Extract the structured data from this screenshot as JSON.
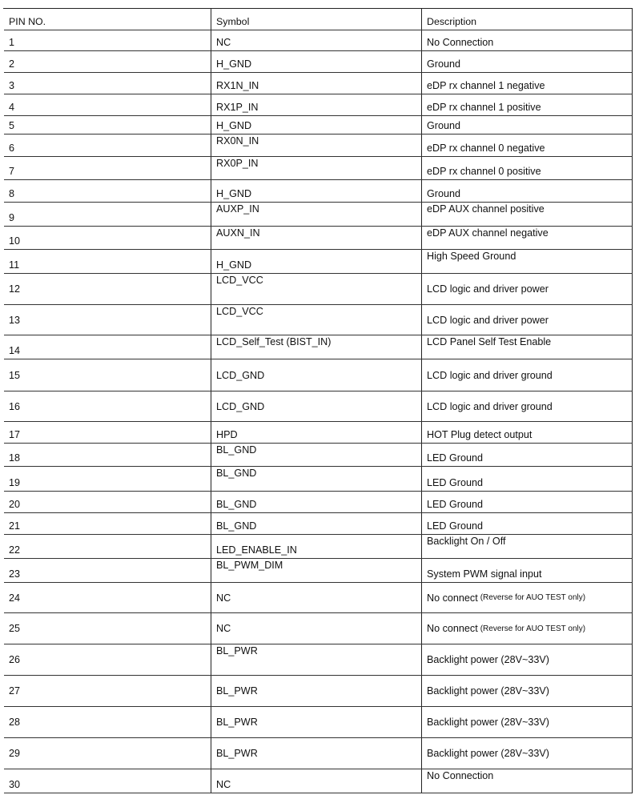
{
  "table": {
    "headers": {
      "pin": "PIN NO.",
      "symbol": "Symbol",
      "description": "Description"
    },
    "rows": [
      {
        "pin": "1",
        "symbol": "NC",
        "description": "No Connection"
      },
      {
        "pin": "2",
        "symbol": "H_GND",
        "description": "Ground"
      },
      {
        "pin": "3",
        "symbol": "RX1N_IN",
        "description": "eDP rx channel 1 negative"
      },
      {
        "pin": "4",
        "symbol": "RX1P_IN",
        "description": "eDP rx channel 1 positive"
      },
      {
        "pin": "5",
        "symbol": "H_GND",
        "description": "Ground"
      },
      {
        "pin": "6",
        "symbol": "RX0N_IN",
        "description": "eDP rx channel 0 negative"
      },
      {
        "pin": "7",
        "symbol": "RX0P_IN",
        "description": "eDP rx channel 0 positive"
      },
      {
        "pin": "8",
        "symbol": "H_GND",
        "description": "Ground"
      },
      {
        "pin": "9",
        "symbol": "AUXP_IN",
        "description": "eDP AUX channel  positive"
      },
      {
        "pin": "10",
        "symbol": "AUXN_IN",
        "description": "eDP AUX channel  negative"
      },
      {
        "pin": "11",
        "symbol": "H_GND",
        "description": "High Speed Ground"
      },
      {
        "pin": "12",
        "symbol": "LCD_VCC",
        "description": "LCD logic and driver power"
      },
      {
        "pin": "13",
        "symbol": "LCD_VCC",
        "description": "LCD logic and driver power"
      },
      {
        "pin": "14",
        "symbol": "LCD_Self_Test (BIST_IN)",
        "description": "LCD Panel Self Test Enable"
      },
      {
        "pin": "15",
        "symbol": "LCD_GND",
        "description": "LCD logic and driver ground"
      },
      {
        "pin": "16",
        "symbol": "LCD_GND",
        "description": "LCD logic and driver ground"
      },
      {
        "pin": "17",
        "symbol": "HPD",
        "description": "HOT Plug detect output"
      },
      {
        "pin": "18",
        "symbol": "BL_GND",
        "description": "LED Ground"
      },
      {
        "pin": "19",
        "symbol": "BL_GND",
        "description": "LED Ground"
      },
      {
        "pin": "20",
        "symbol": "BL_GND",
        "description": "LED Ground"
      },
      {
        "pin": "21",
        "symbol": "BL_GND",
        "description": "LED Ground"
      },
      {
        "pin": "22",
        "symbol": "LED_ENABLE_IN",
        "description": "Backlight On / Off"
      },
      {
        "pin": "23",
        "symbol": "BL_PWM_DIM",
        "description": "System PWM signal input"
      },
      {
        "pin": "24",
        "symbol": "NC",
        "description": "No connect",
        "note": "(Reverse for AUO TEST only)"
      },
      {
        "pin": "25",
        "symbol": "NC",
        "description": "No connect",
        "note": "(Reverse for AUO TEST only)"
      },
      {
        "pin": "26",
        "symbol": "BL_PWR",
        "description": "Backlight power (28V~33V)"
      },
      {
        "pin": "27",
        "symbol": "BL_PWR",
        "description": "Backlight power (28V~33V)"
      },
      {
        "pin": "28",
        "symbol": "BL_PWR",
        "description": "Backlight power (28V~33V)"
      },
      {
        "pin": "29",
        "symbol": "BL_PWR",
        "description": "Backlight power (28V~33V)"
      },
      {
        "pin": "30",
        "symbol": "NC",
        "description": "No Connection"
      }
    ]
  }
}
